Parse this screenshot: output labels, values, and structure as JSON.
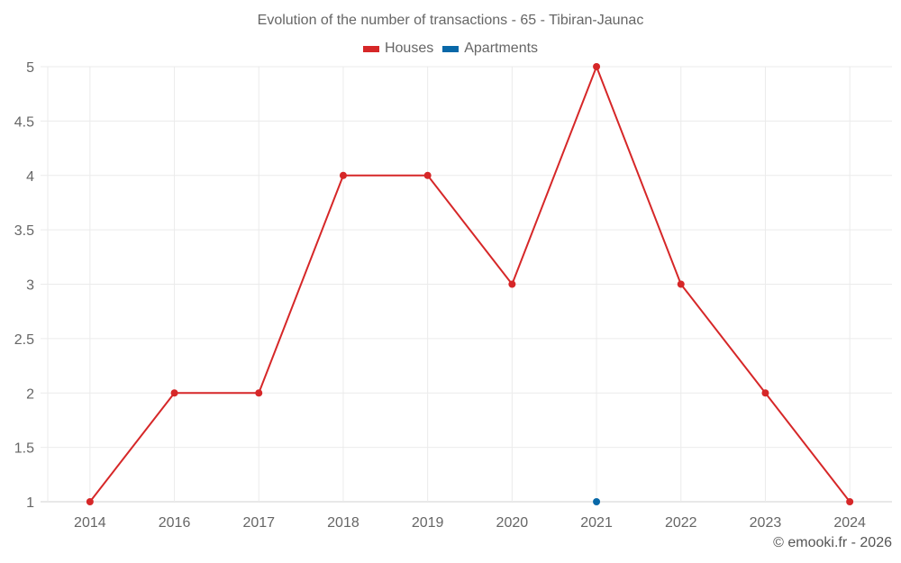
{
  "chart_data": {
    "type": "line",
    "title": "Evolution of the number of transactions - 65 - Tibiran-Jaunac",
    "categories": [
      "2014",
      "2016",
      "2017",
      "2018",
      "2019",
      "2020",
      "2021",
      "2022",
      "2023",
      "2024"
    ],
    "series": [
      {
        "name": "Houses",
        "color": "#d62728",
        "values": [
          1,
          2,
          2,
          4,
          4,
          3,
          5,
          3,
          2,
          1
        ]
      },
      {
        "name": "Apartments",
        "color": "#0868a8",
        "values": [
          null,
          null,
          null,
          null,
          null,
          null,
          1,
          null,
          null,
          null
        ]
      }
    ],
    "ylim": [
      1,
      5
    ],
    "yticks": [
      "1",
      "1.5",
      "2",
      "2.5",
      "3",
      "3.5",
      "4",
      "4.5",
      "5"
    ],
    "grid": true,
    "legend_position": "top-center",
    "xlabel": "",
    "ylabel": ""
  },
  "credit": "© emooki.fr - 2026"
}
